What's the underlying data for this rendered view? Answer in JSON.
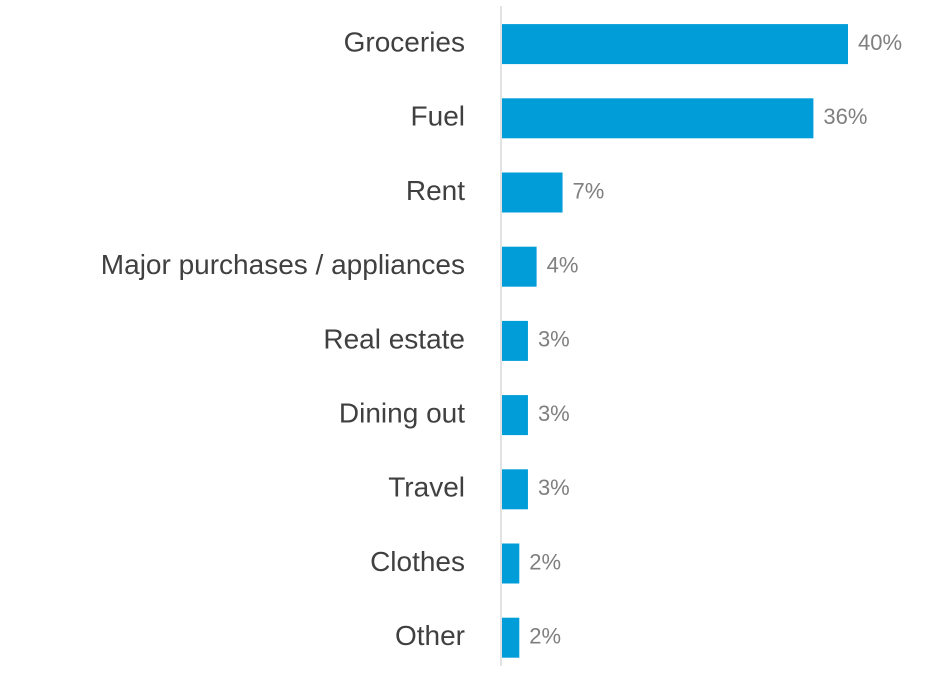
{
  "chart_data": {
    "type": "bar",
    "orientation": "horizontal",
    "categories": [
      "Groceries",
      "Fuel",
      "Rent",
      "Major purchases / appliances",
      "Real estate",
      "Dining out",
      "Travel",
      "Clothes",
      "Other"
    ],
    "values": [
      40,
      36,
      7,
      4,
      3,
      3,
      3,
      2,
      2
    ],
    "value_labels": [
      "40%",
      "36%",
      "7%",
      "4%",
      "3%",
      "3%",
      "3%",
      "2%",
      "2%"
    ],
    "color": "#009dd9"
  }
}
